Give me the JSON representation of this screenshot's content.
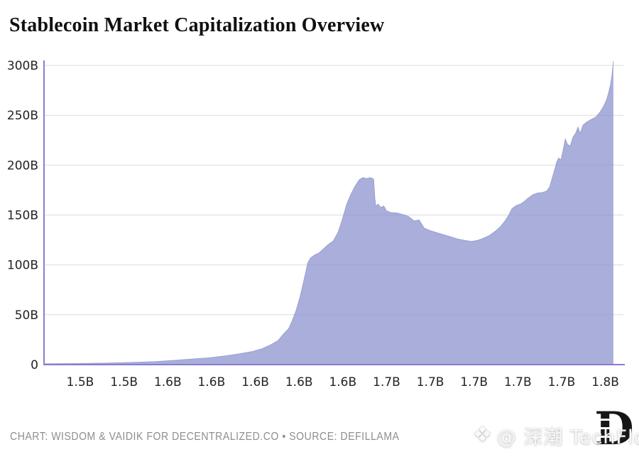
{
  "header": {
    "title": "Stablecoin Market Capitalization Overview"
  },
  "footer": {
    "credit": "CHART: WISDOM & VAIDIK FOR DECENTRALIZED.CO • SOURCE: DEFILLAMA"
  },
  "watermark": {
    "diamond_icon": "❖",
    "handle": "@ 深潮 TechFlow"
  },
  "logo": {
    "letter": "D"
  },
  "colors": {
    "title": "#101010",
    "fill": "rgba(140,148,206,0.75)",
    "line": "#9aa1d0",
    "spine": "#8a7dd2",
    "grid": "#dcdcdc",
    "tick": "#242424",
    "credit": "#8e8e90"
  },
  "chart_data": {
    "type": "area",
    "title": "Stablecoin Market Capitalization Overview",
    "xlabel": "",
    "ylabel": "",
    "x_unit": "unix timestamp, billions of seconds",
    "y_unit": "USD billions",
    "grid": "horizontal",
    "legend": "none",
    "xlim": [
      1.4793,
      1.8103
    ],
    "ylim": [
      0,
      305
    ],
    "yticks": [
      {
        "v": 0,
        "label": "0"
      },
      {
        "v": 50,
        "label": "50B"
      },
      {
        "v": 100,
        "label": "100B"
      },
      {
        "v": 150,
        "label": "150B"
      },
      {
        "v": 200,
        "label": "200B"
      },
      {
        "v": 250,
        "label": "250B"
      },
      {
        "v": 300,
        "label": "300B"
      }
    ],
    "xticks": [
      {
        "v": 1.5,
        "label": "1.5B"
      },
      {
        "v": 1.525,
        "label": "1.5B"
      },
      {
        "v": 1.55,
        "label": "1.6B"
      },
      {
        "v": 1.575,
        "label": "1.6B"
      },
      {
        "v": 1.6,
        "label": "1.6B"
      },
      {
        "v": 1.625,
        "label": "1.6B"
      },
      {
        "v": 1.65,
        "label": "1.6B"
      },
      {
        "v": 1.675,
        "label": "1.7B"
      },
      {
        "v": 1.7,
        "label": "1.7B"
      },
      {
        "v": 1.725,
        "label": "1.7B"
      },
      {
        "v": 1.75,
        "label": "1.7B"
      },
      {
        "v": 1.775,
        "label": "1.7B"
      },
      {
        "v": 1.8,
        "label": "1.8B"
      }
    ],
    "points": [
      [
        1.4793,
        0.8
      ],
      [
        1.4947,
        1.0
      ],
      [
        1.515,
        1.5
      ],
      [
        1.5312,
        2.2
      ],
      [
        1.5433,
        3.0
      ],
      [
        1.5534,
        4.2
      ],
      [
        1.5636,
        5.5
      ],
      [
        1.5737,
        6.8
      ],
      [
        1.5818,
        8.5
      ],
      [
        1.5899,
        10.5
      ],
      [
        1.598,
        13
      ],
      [
        1.6041,
        16
      ],
      [
        1.609,
        20
      ],
      [
        1.613,
        24
      ],
      [
        1.6163,
        31
      ],
      [
        1.6191,
        36
      ],
      [
        1.6211,
        44
      ],
      [
        1.6231,
        53
      ],
      [
        1.6256,
        68
      ],
      [
        1.628,
        86
      ],
      [
        1.63,
        102
      ],
      [
        1.6316,
        107
      ],
      [
        1.6341,
        110
      ],
      [
        1.6365,
        112
      ],
      [
        1.6389,
        116
      ],
      [
        1.6414,
        120
      ],
      [
        1.6446,
        124
      ],
      [
        1.6474,
        133
      ],
      [
        1.6498,
        146
      ],
      [
        1.6523,
        161
      ],
      [
        1.6547,
        171
      ],
      [
        1.6571,
        179
      ],
      [
        1.6595,
        185.5
      ],
      [
        1.6616,
        187.5
      ],
      [
        1.6636,
        186.5
      ],
      [
        1.6656,
        187.5
      ],
      [
        1.6676,
        186
      ],
      [
        1.6683,
        167
      ],
      [
        1.6689,
        158.5
      ],
      [
        1.6701,
        161
      ],
      [
        1.6717,
        157.5
      ],
      [
        1.6734,
        159
      ],
      [
        1.675,
        154
      ],
      [
        1.6774,
        152.5
      ],
      [
        1.6811,
        152
      ],
      [
        1.6843,
        150.5
      ],
      [
        1.6875,
        148.5
      ],
      [
        1.6908,
        144
      ],
      [
        1.6936,
        145
      ],
      [
        1.6964,
        137
      ],
      [
        1.6997,
        134.5
      ],
      [
        1.7033,
        132.5
      ],
      [
        1.707,
        130.5
      ],
      [
        1.711,
        128.5
      ],
      [
        1.7155,
        126
      ],
      [
        1.7196,
        124.5
      ],
      [
        1.7236,
        123.5
      ],
      [
        1.7269,
        124.5
      ],
      [
        1.7301,
        126.5
      ],
      [
        1.7338,
        129.5
      ],
      [
        1.737,
        133.5
      ],
      [
        1.7402,
        138.5
      ],
      [
        1.7427,
        144
      ],
      [
        1.7447,
        149.5
      ],
      [
        1.7467,
        156.5
      ],
      [
        1.7491,
        159.5
      ],
      [
        1.7516,
        161
      ],
      [
        1.7536,
        163.5
      ],
      [
        1.756,
        167
      ],
      [
        1.7588,
        170.5
      ],
      [
        1.7613,
        172
      ],
      [
        1.7641,
        172.5
      ],
      [
        1.7665,
        174
      ],
      [
        1.7682,
        178
      ],
      [
        1.7698,
        188
      ],
      [
        1.771,
        195
      ],
      [
        1.7722,
        203
      ],
      [
        1.7734,
        207
      ],
      [
        1.7746,
        205
      ],
      [
        1.7758,
        214
      ],
      [
        1.7771,
        226
      ],
      [
        1.7783,
        221
      ],
      [
        1.7799,
        219
      ],
      [
        1.7815,
        228
      ],
      [
        1.7831,
        232
      ],
      [
        1.7844,
        238
      ],
      [
        1.7856,
        231.5
      ],
      [
        1.7872,
        240
      ],
      [
        1.7892,
        243
      ],
      [
        1.7917,
        245.5
      ],
      [
        1.7945,
        248
      ],
      [
        1.7969,
        253
      ],
      [
        1.799,
        259
      ],
      [
        1.8006,
        265
      ],
      [
        1.8018,
        272
      ],
      [
        1.803,
        281
      ],
      [
        1.8038,
        290
      ],
      [
        1.8046,
        304
      ]
    ]
  }
}
